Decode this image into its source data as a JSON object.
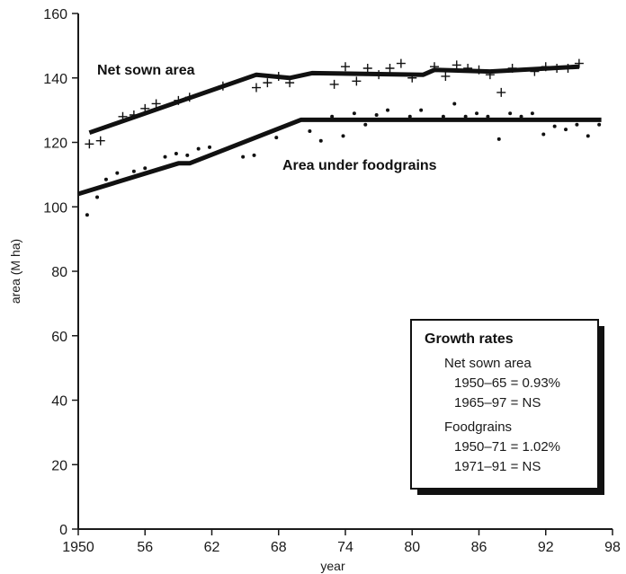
{
  "chart_data": {
    "type": "scatter",
    "xlabel": "year",
    "ylabel": "area (M ha)",
    "xlim": [
      1950,
      1998
    ],
    "ylim": [
      0,
      160
    ],
    "x_ticks": [
      1950,
      1956,
      1962,
      1968,
      1974,
      1980,
      1986,
      1992,
      1998
    ],
    "x_tick_labels": [
      "1950",
      "56",
      "62",
      "68",
      "74",
      "80",
      "86",
      "92",
      "98"
    ],
    "y_ticks": [
      0,
      20,
      40,
      60,
      80,
      100,
      120,
      140,
      160
    ],
    "grid": false,
    "series": [
      {
        "name": "Net sown area",
        "marker": "plus",
        "points": [
          [
            1951,
            119.5
          ],
          [
            1952,
            120.5
          ],
          [
            1954,
            128
          ],
          [
            1955,
            128.5
          ],
          [
            1956,
            130.5
          ],
          [
            1957,
            132
          ],
          [
            1959,
            133
          ],
          [
            1960,
            134
          ],
          [
            1963,
            137.5
          ],
          [
            1966,
            137
          ],
          [
            1967,
            138.5
          ],
          [
            1968,
            140.5
          ],
          [
            1969,
            138.5
          ],
          [
            1973,
            138
          ],
          [
            1974,
            143.5
          ],
          [
            1975,
            139
          ],
          [
            1976,
            143
          ],
          [
            1977,
            141
          ],
          [
            1978,
            143
          ],
          [
            1979,
            144.5
          ],
          [
            1980,
            140
          ],
          [
            1982,
            143.5
          ],
          [
            1983,
            140.5
          ],
          [
            1984,
            144
          ],
          [
            1985,
            143
          ],
          [
            1986,
            142.5
          ],
          [
            1987,
            141
          ],
          [
            1988,
            135.5
          ],
          [
            1989,
            143
          ],
          [
            1991,
            142
          ],
          [
            1992,
            143.5
          ],
          [
            1993,
            143
          ],
          [
            1994,
            143
          ],
          [
            1995,
            144.5
          ]
        ],
        "trend": [
          [
            1951,
            123
          ],
          [
            1966,
            141
          ],
          [
            1969,
            140
          ],
          [
            1971,
            141.5
          ],
          [
            1981,
            141
          ],
          [
            1982,
            142.5
          ],
          [
            1987,
            142
          ],
          [
            1995,
            143.5
          ]
        ]
      },
      {
        "name": "Area under foodgrains",
        "marker": "dot",
        "points": [
          [
            1950.8,
            97.5
          ],
          [
            1951.7,
            103
          ],
          [
            1952.5,
            108.5
          ],
          [
            1953.5,
            110.5
          ],
          [
            1955,
            111
          ],
          [
            1956,
            112
          ],
          [
            1957.8,
            115.5
          ],
          [
            1958.8,
            116.5
          ],
          [
            1959.8,
            116
          ],
          [
            1960.8,
            118
          ],
          [
            1961.8,
            118.5
          ],
          [
            1964.8,
            115.5
          ],
          [
            1965.8,
            116
          ],
          [
            1967.8,
            121.5
          ],
          [
            1970.8,
            123.5
          ],
          [
            1971.8,
            120.5
          ],
          [
            1972.8,
            128
          ],
          [
            1973.8,
            122
          ],
          [
            1974.8,
            129
          ],
          [
            1975.8,
            125.5
          ],
          [
            1976.8,
            128.5
          ],
          [
            1977.8,
            130
          ],
          [
            1979.8,
            128
          ],
          [
            1980.8,
            130
          ],
          [
            1982.8,
            128
          ],
          [
            1983.8,
            132
          ],
          [
            1984.8,
            128
          ],
          [
            1985.8,
            129
          ],
          [
            1986.8,
            128
          ],
          [
            1987.8,
            121
          ],
          [
            1988.8,
            129
          ],
          [
            1989.8,
            128
          ],
          [
            1990.8,
            129
          ],
          [
            1991.8,
            122.5
          ],
          [
            1992.8,
            125
          ],
          [
            1993.8,
            124
          ],
          [
            1994.8,
            125.5
          ],
          [
            1995.8,
            122
          ],
          [
            1996.8,
            125.5
          ]
        ],
        "trend": [
          [
            1950,
            104
          ],
          [
            1959,
            113.5
          ],
          [
            1960,
            113.5
          ],
          [
            1970,
            127
          ],
          [
            1997,
            127
          ]
        ]
      }
    ],
    "annotations": {
      "net_sown_label": "Net sown area",
      "foodgrains_label": "Area under foodgrains"
    },
    "legend_box": {
      "title": "Growth rates",
      "placement": "lower-right",
      "lines": [
        "Net sown area",
        "1950–65 = 0.93%",
        "1965–97 = NS",
        "Foodgrains",
        "1950–71 = 1.02%",
        "1971–91 = NS"
      ]
    },
    "colors": {
      "marks": "#111111",
      "axis": "#1a1a1a",
      "background": "#ffffff"
    }
  }
}
